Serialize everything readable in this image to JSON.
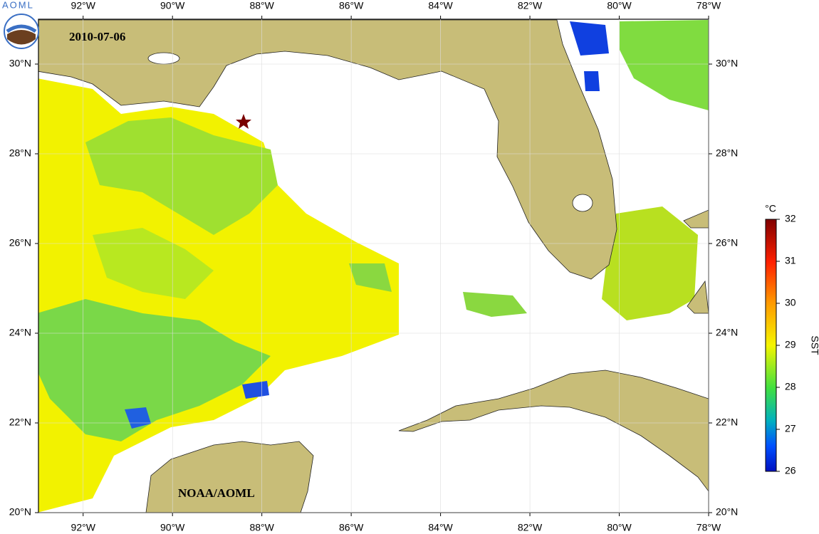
{
  "map": {
    "logo_text": "AOML",
    "date": "2010-07-06",
    "credit": "NOAA/AOML",
    "lonlim": [
      -93,
      -78
    ],
    "latlim": [
      20,
      31
    ],
    "lonticks": [
      {
        "value": -92,
        "label": "92°W"
      },
      {
        "value": -90,
        "label": "90°W"
      },
      {
        "value": -88,
        "label": "88°W"
      },
      {
        "value": -86,
        "label": "86°W"
      },
      {
        "value": -84,
        "label": "84°W"
      },
      {
        "value": -82,
        "label": "82°W"
      },
      {
        "value": -80,
        "label": "80°W"
      },
      {
        "value": -78,
        "label": "78°W"
      }
    ],
    "latticks": [
      {
        "value": 20,
        "label": "20°N"
      },
      {
        "value": 22,
        "label": "22°N"
      },
      {
        "value": 24,
        "label": "24°N"
      },
      {
        "value": 26,
        "label": "26°N"
      },
      {
        "value": 28,
        "label": "28°N"
      },
      {
        "value": 30,
        "label": "30°N"
      }
    ],
    "colorbar": {
      "unit": "°C",
      "label": "SST",
      "lim": [
        26,
        32
      ],
      "ticks": [
        26,
        27,
        28,
        29,
        30,
        31,
        32
      ]
    }
  }
}
